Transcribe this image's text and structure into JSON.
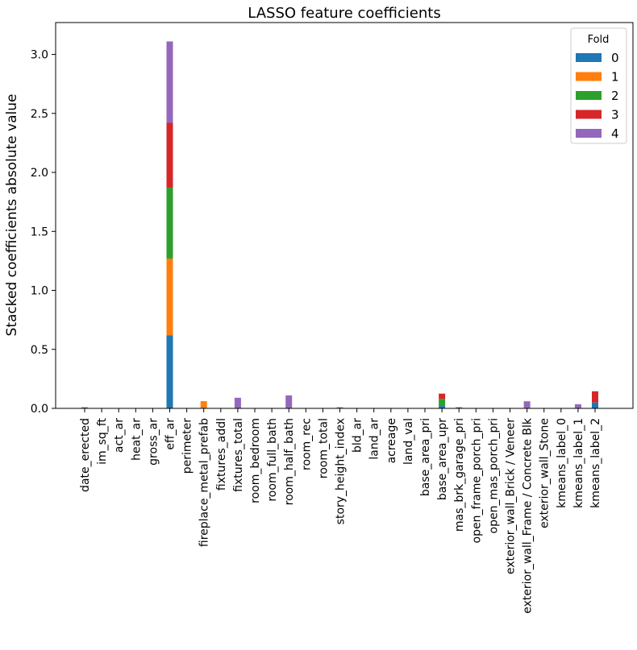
{
  "chart_data": {
    "type": "bar",
    "stacked": true,
    "title": "LASSO feature coefficients",
    "xlabel": "",
    "ylabel": "Stacked coefficients absolute value",
    "ylim": [
      0,
      3.27
    ],
    "yticks": [
      "0.0",
      "0.5",
      "1.0",
      "1.5",
      "2.0",
      "2.5",
      "3.0"
    ],
    "grid": false,
    "legend": {
      "title": "Fold",
      "placement": "top-right"
    },
    "categories": [
      "date_erected",
      "im_sq_ft",
      "act_ar",
      "heat_ar",
      "gross_ar",
      "eff_ar",
      "perimeter",
      "fireplace_metal_prefab",
      "fixtures_addl",
      "fixtures_total",
      "room_bedroom",
      "room_full_bath",
      "room_half_bath",
      "room_rec",
      "room_total",
      "story_height_index",
      "bld_ar",
      "land_ar",
      "acreage",
      "land_val",
      "base_area_pri",
      "base_area_upr",
      "mas_brk_garage_pri",
      "open_frame_porch_pri",
      "open_mas_porch_pri",
      "exterior_wall_Brick / Veneer",
      "exterior_wall_Frame / Concrete Blk",
      "exterior_wall_Stone",
      "kmeans_label_0",
      "kmeans_label_1",
      "kmeans_label_2"
    ],
    "series": [
      {
        "name": "0",
        "color": "#1f77b4",
        "values": [
          0,
          0,
          0,
          0,
          0,
          0.62,
          0,
          0,
          0,
          0,
          0,
          0,
          0,
          0,
          0,
          0,
          0,
          0,
          0,
          0,
          0,
          0.02,
          0,
          0,
          0,
          0,
          0,
          0,
          0,
          0,
          0.05
        ]
      },
      {
        "name": "1",
        "color": "#ff7f0e",
        "values": [
          0,
          0,
          0,
          0,
          0,
          0.65,
          0,
          0.055,
          0,
          0,
          0,
          0,
          0,
          0,
          0,
          0,
          0,
          0,
          0,
          0,
          0,
          0,
          0,
          0,
          0,
          0,
          0,
          0,
          0,
          0,
          0
        ]
      },
      {
        "name": "2",
        "color": "#2ca02c",
        "values": [
          0,
          0,
          0,
          0,
          0,
          0.6,
          0,
          0,
          0,
          0,
          0,
          0,
          0,
          0,
          0,
          0,
          0,
          0,
          0,
          0,
          0,
          0.06,
          0,
          0,
          0,
          0,
          0,
          0,
          0,
          0,
          0
        ]
      },
      {
        "name": "3",
        "color": "#d62728",
        "values": [
          0,
          0,
          0,
          0,
          0,
          0.55,
          0,
          0,
          0,
          0,
          0,
          0,
          0,
          0,
          0,
          0.005,
          0,
          0,
          0,
          0,
          0,
          0.045,
          0,
          0,
          0,
          0,
          0,
          0,
          0,
          0,
          0.095
        ]
      },
      {
        "name": "4",
        "color": "#9467bd",
        "values": [
          0.01,
          0,
          0,
          0,
          0,
          0.69,
          0,
          0.005,
          0,
          0.09,
          0,
          0,
          0.11,
          0,
          0,
          0.005,
          0,
          0,
          0,
          0,
          0,
          0,
          0.01,
          0,
          0,
          0,
          0.06,
          0,
          0,
          0.035,
          0
        ]
      }
    ]
  }
}
